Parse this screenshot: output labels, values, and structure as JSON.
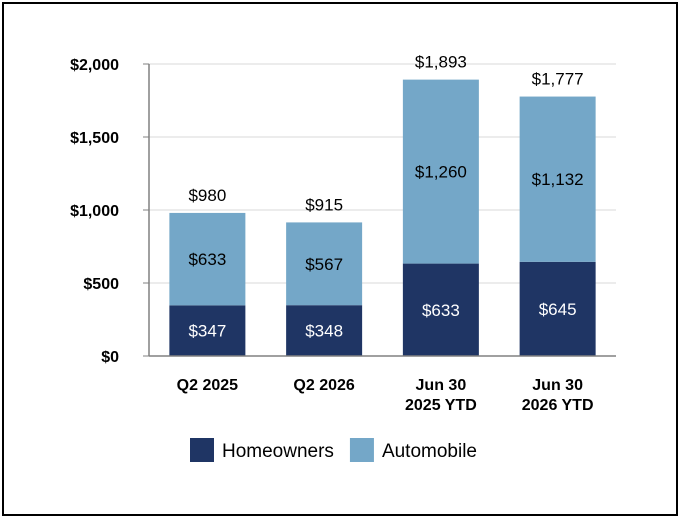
{
  "chart_data": {
    "type": "bar",
    "stacked": true,
    "categories": [
      [
        "Q2 2025"
      ],
      [
        "Q2 2026"
      ],
      [
        "Jun 30",
        "2025 YTD"
      ],
      [
        "Jun 30",
        "2026 YTD"
      ]
    ],
    "series": [
      {
        "name": "Homeowners",
        "values": [
          347,
          348,
          633,
          645
        ],
        "labels": [
          "$347",
          "$348",
          "$633",
          "$645"
        ],
        "color": "#1f3564",
        "label_color": "#ffffff"
      },
      {
        "name": "Automobile",
        "values": [
          633,
          567,
          1260,
          1132
        ],
        "labels": [
          "$633",
          "$567",
          "$1,260",
          "$1,132"
        ],
        "color": "#74a7c8",
        "label_color": "#000000"
      }
    ],
    "totals": [
      980,
      915,
      1893,
      1777
    ],
    "total_labels": [
      "$980",
      "$915",
      "$1,893",
      "$1,777"
    ],
    "y_ticks": [
      0,
      500,
      1000,
      1500,
      2000
    ],
    "y_tick_labels": [
      "$0",
      "$500",
      "$1,000",
      "$1,500",
      "$2,000"
    ],
    "ylim": [
      0,
      2000
    ],
    "grid": true,
    "legend_position": "bottom",
    "title": "",
    "xlabel": "",
    "ylabel": ""
  }
}
